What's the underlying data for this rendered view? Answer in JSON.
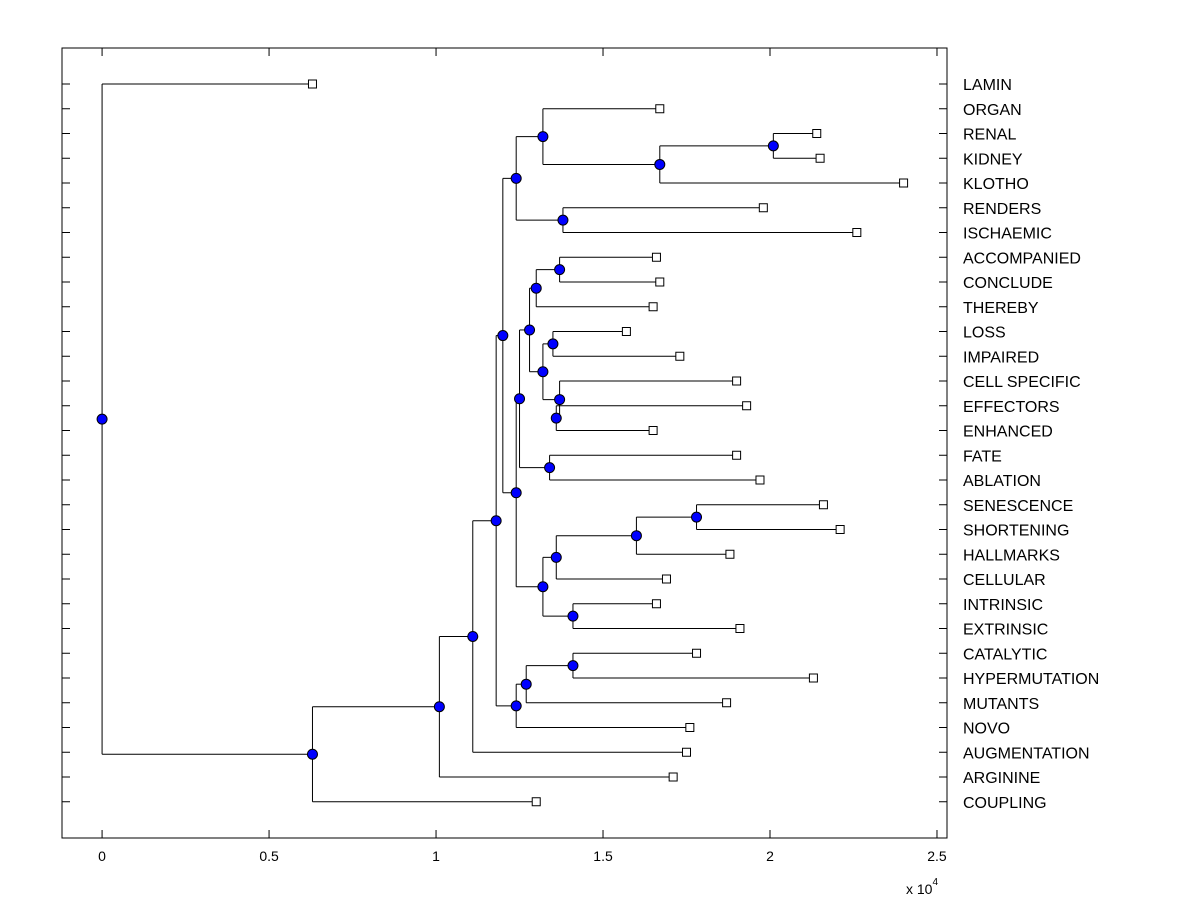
{
  "chart_data": {
    "type": "dendrogram",
    "orientation": "horizontal",
    "title": "",
    "xlabel": "",
    "ylabel": "",
    "xlim": [
      -0.12,
      2.53
    ],
    "x_tick_values": [
      0,
      0.5,
      1,
      1.5,
      2,
      2.5
    ],
    "x_tick_labels": [
      "0",
      "0.5",
      "1",
      "1.5",
      "2",
      "2.5"
    ],
    "x_scale_base": "x 10",
    "x_scale_exponent": "4",
    "grid": false,
    "leaf_marker_color": "#ffffff",
    "node_marker_color": "#0000ff",
    "leaves": [
      {
        "label": "LAMIN",
        "x": 0.63
      },
      {
        "label": "ORGAN",
        "x": 1.67
      },
      {
        "label": "RENAL",
        "x": 2.14
      },
      {
        "label": "KIDNEY",
        "x": 2.15
      },
      {
        "label": "KLOTHO",
        "x": 2.4
      },
      {
        "label": "RENDERS",
        "x": 1.98
      },
      {
        "label": "ISCHAEMIC",
        "x": 2.26
      },
      {
        "label": "ACCOMPANIED",
        "x": 1.66
      },
      {
        "label": "CONCLUDE",
        "x": 1.67
      },
      {
        "label": "THEREBY",
        "x": 1.65
      },
      {
        "label": "LOSS",
        "x": 1.57
      },
      {
        "label": "IMPAIRED",
        "x": 1.73
      },
      {
        "label": "CELL SPECIFIC",
        "x": 1.9
      },
      {
        "label": "EFFECTORS",
        "x": 1.93
      },
      {
        "label": "ENHANCED",
        "x": 1.65
      },
      {
        "label": "FATE",
        "x": 1.9
      },
      {
        "label": "ABLATION",
        "x": 1.97
      },
      {
        "label": "SENESCENCE",
        "x": 2.16
      },
      {
        "label": "SHORTENING",
        "x": 2.21
      },
      {
        "label": "HALLMARKS",
        "x": 1.88
      },
      {
        "label": "CELLULAR",
        "x": 1.69
      },
      {
        "label": "INTRINSIC",
        "x": 1.66
      },
      {
        "label": "EXTRINSIC",
        "x": 1.91
      },
      {
        "label": "CATALYTIC",
        "x": 1.78
      },
      {
        "label": "HYPERMUTATION",
        "x": 2.13
      },
      {
        "label": "MUTANTS",
        "x": 1.87
      },
      {
        "label": "NOVO",
        "x": 1.76
      },
      {
        "label": "AUGMENTATION",
        "x": 1.75
      },
      {
        "label": "ARGININE",
        "x": 1.71
      },
      {
        "label": "COUPLING",
        "x": 1.3
      }
    ],
    "merges": [
      {
        "id": "n1",
        "x": 2.01,
        "children": [
          "RENAL",
          "KIDNEY"
        ]
      },
      {
        "id": "n2",
        "x": 1.67,
        "children": [
          "n1",
          "KLOTHO"
        ]
      },
      {
        "id": "n3",
        "x": 1.32,
        "children": [
          "ORGAN",
          "n2"
        ]
      },
      {
        "id": "n4",
        "x": 1.38,
        "children": [
          "RENDERS",
          "ISCHAEMIC"
        ]
      },
      {
        "id": "n5",
        "x": 1.24,
        "children": [
          "n3",
          "n4"
        ]
      },
      {
        "id": "n6",
        "x": 1.37,
        "children": [
          "ACCOMPANIED",
          "CONCLUDE"
        ]
      },
      {
        "id": "n7",
        "x": 1.3,
        "children": [
          "n6",
          "THEREBY"
        ]
      },
      {
        "id": "n8",
        "x": 1.35,
        "children": [
          "LOSS",
          "IMPAIRED"
        ]
      },
      {
        "id": "n9",
        "x": 1.36,
        "children": [
          "EFFECTORS",
          "ENHANCED"
        ]
      },
      {
        "id": "n10",
        "x": 1.37,
        "children": [
          "CELL SPECIFIC",
          "n9"
        ]
      },
      {
        "id": "n11",
        "x": 1.32,
        "children": [
          "n8",
          "n10"
        ]
      },
      {
        "id": "n12",
        "x": 1.28,
        "children": [
          "n7",
          "n11"
        ]
      },
      {
        "id": "n13",
        "x": 1.34,
        "children": [
          "FATE",
          "ABLATION"
        ]
      },
      {
        "id": "n14",
        "x": 1.25,
        "children": [
          "n12",
          "n13"
        ]
      },
      {
        "id": "n15",
        "x": 1.78,
        "children": [
          "SENESCENCE",
          "SHORTENING"
        ]
      },
      {
        "id": "n16",
        "x": 1.6,
        "children": [
          "n15",
          "HALLMARKS"
        ]
      },
      {
        "id": "n17",
        "x": 1.36,
        "children": [
          "n16",
          "CELLULAR"
        ]
      },
      {
        "id": "n18",
        "x": 1.41,
        "children": [
          "INTRINSIC",
          "EXTRINSIC"
        ]
      },
      {
        "id": "n19",
        "x": 1.32,
        "children": [
          "n17",
          "n18"
        ]
      },
      {
        "id": "n20",
        "x": 1.24,
        "children": [
          "n14",
          "n19"
        ]
      },
      {
        "id": "n21",
        "x": 1.2,
        "children": [
          "n5",
          "n20"
        ]
      },
      {
        "id": "n22",
        "x": 1.41,
        "children": [
          "CATALYTIC",
          "HYPERMUTATION"
        ]
      },
      {
        "id": "n23",
        "x": 1.27,
        "children": [
          "n22",
          "MUTANTS"
        ]
      },
      {
        "id": "n24",
        "x": 1.24,
        "children": [
          "n23",
          "NOVO"
        ]
      },
      {
        "id": "n25",
        "x": 1.18,
        "children": [
          "n21",
          "n24"
        ]
      },
      {
        "id": "n26",
        "x": 1.11,
        "children": [
          "n25",
          "AUGMENTATION"
        ]
      },
      {
        "id": "n27",
        "x": 1.01,
        "children": [
          "n26",
          "ARGININE"
        ]
      },
      {
        "id": "n28",
        "x": 0.63,
        "children": [
          "n27",
          "COUPLING"
        ]
      },
      {
        "id": "n29",
        "x": 0.0,
        "children": [
          "LAMIN",
          "n28"
        ]
      }
    ]
  }
}
